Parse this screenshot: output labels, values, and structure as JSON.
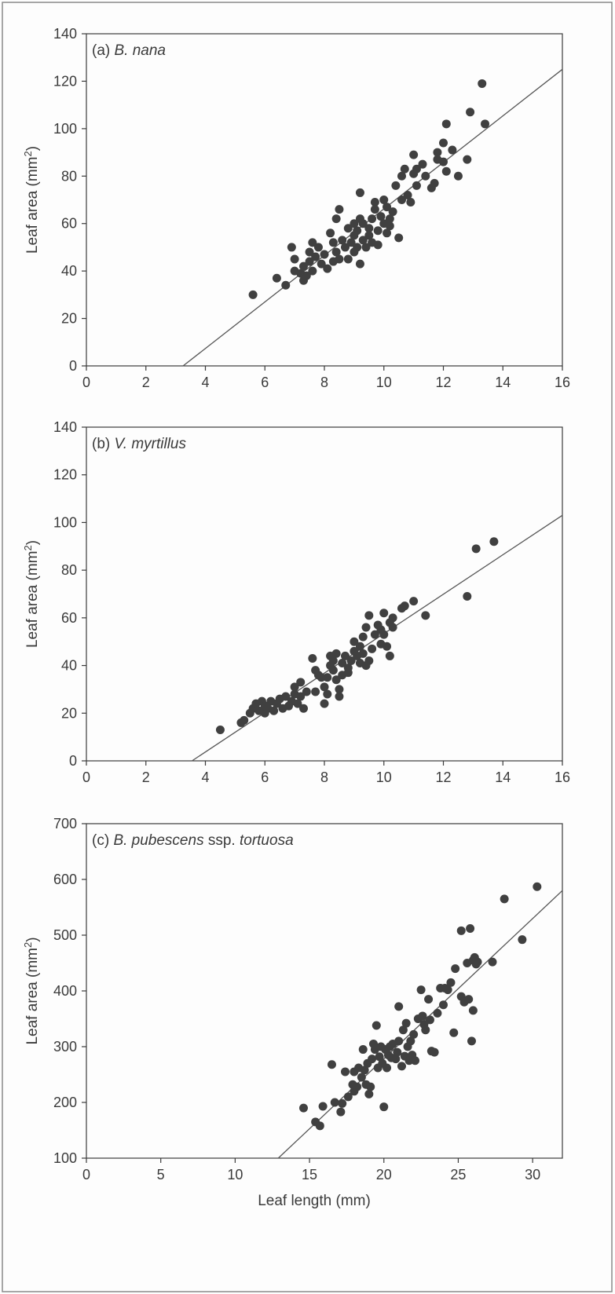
{
  "figure": {
    "colors": {
      "points": "#404040",
      "line": "#555555",
      "axes": "#3a3a3a",
      "frame": "#8a8a8a"
    }
  },
  "chart_data": [
    {
      "type": "scatter",
      "panel_label": "(a)",
      "species": "B. nana",
      "species_suffix": "",
      "xlabel": "",
      "ylabel_main": "Leaf area (mm",
      "ylabel_sup": "2",
      "ylabel_close": ")",
      "xlim": [
        0,
        16
      ],
      "ylim": [
        0,
        140
      ],
      "x_ticks": [
        0,
        2,
        4,
        6,
        8,
        10,
        12,
        14,
        16
      ],
      "y_ticks": [
        0,
        20,
        40,
        60,
        80,
        100,
        120,
        140
      ],
      "grid": false,
      "fit_line": [
        [
          3.25,
          0
        ],
        [
          16,
          125
        ]
      ],
      "points": [
        [
          5.6,
          30
        ],
        [
          6.4,
          37
        ],
        [
          6.7,
          34
        ],
        [
          6.9,
          50
        ],
        [
          7.0,
          45
        ],
        [
          7.0,
          40
        ],
        [
          7.2,
          39
        ],
        [
          7.3,
          36
        ],
        [
          7.3,
          42
        ],
        [
          7.4,
          38
        ],
        [
          7.5,
          44
        ],
        [
          7.5,
          48
        ],
        [
          7.6,
          52
        ],
        [
          7.6,
          40
        ],
        [
          7.7,
          46
        ],
        [
          7.8,
          50
        ],
        [
          7.9,
          43
        ],
        [
          8.0,
          47
        ],
        [
          8.1,
          41
        ],
        [
          8.2,
          56
        ],
        [
          8.3,
          44
        ],
        [
          8.3,
          52
        ],
        [
          8.4,
          48
        ],
        [
          8.4,
          62
        ],
        [
          8.5,
          66
        ],
        [
          8.5,
          45
        ],
        [
          8.6,
          53
        ],
        [
          8.7,
          50
        ],
        [
          8.8,
          58
        ],
        [
          8.8,
          45
        ],
        [
          8.9,
          52
        ],
        [
          9.0,
          60
        ],
        [
          9.0,
          55
        ],
        [
          9.0,
          48
        ],
        [
          9.1,
          50
        ],
        [
          9.1,
          57
        ],
        [
          9.2,
          62
        ],
        [
          9.2,
          43
        ],
        [
          9.2,
          73
        ],
        [
          9.3,
          53
        ],
        [
          9.3,
          60
        ],
        [
          9.4,
          50
        ],
        [
          9.5,
          55
        ],
        [
          9.5,
          58
        ],
        [
          9.6,
          62
        ],
        [
          9.6,
          52
        ],
        [
          9.7,
          66
        ],
        [
          9.7,
          69
        ],
        [
          9.8,
          57
        ],
        [
          9.8,
          51
        ],
        [
          9.9,
          63
        ],
        [
          10.0,
          70
        ],
        [
          10.0,
          60
        ],
        [
          10.1,
          67
        ],
        [
          10.1,
          56
        ],
        [
          10.2,
          62
        ],
        [
          10.2,
          59
        ],
        [
          10.3,
          65
        ],
        [
          10.4,
          76
        ],
        [
          10.5,
          54
        ],
        [
          10.6,
          80
        ],
        [
          10.6,
          70
        ],
        [
          10.7,
          83
        ],
        [
          10.8,
          72
        ],
        [
          10.9,
          69
        ],
        [
          11.0,
          81
        ],
        [
          11.0,
          89
        ],
        [
          11.1,
          83
        ],
        [
          11.1,
          76
        ],
        [
          11.3,
          85
        ],
        [
          11.4,
          80
        ],
        [
          11.6,
          75
        ],
        [
          11.7,
          77
        ],
        [
          11.8,
          90
        ],
        [
          11.8,
          87
        ],
        [
          12.0,
          94
        ],
        [
          12.0,
          86
        ],
        [
          12.1,
          82
        ],
        [
          12.1,
          102
        ],
        [
          12.3,
          91
        ],
        [
          12.5,
          80
        ],
        [
          12.8,
          87
        ],
        [
          12.9,
          107
        ],
        [
          13.3,
          119
        ],
        [
          13.4,
          102
        ]
      ]
    },
    {
      "type": "scatter",
      "panel_label": "(b)",
      "species": "V. myrtillus",
      "species_suffix": "",
      "xlabel": "",
      "ylabel_main": "Leaf area (mm",
      "ylabel_sup": "2",
      "ylabel_close": ")",
      "xlim": [
        0,
        16
      ],
      "ylim": [
        0,
        140
      ],
      "x_ticks": [
        0,
        2,
        4,
        6,
        8,
        10,
        12,
        14,
        16
      ],
      "y_ticks": [
        0,
        20,
        40,
        60,
        80,
        100,
        120,
        140
      ],
      "grid": false,
      "fit_line": [
        [
          3.55,
          0
        ],
        [
          16,
          103
        ]
      ],
      "points": [
        [
          4.5,
          13
        ],
        [
          5.2,
          16
        ],
        [
          5.3,
          17
        ],
        [
          5.5,
          20
        ],
        [
          5.6,
          22
        ],
        [
          5.7,
          24
        ],
        [
          5.8,
          21
        ],
        [
          5.9,
          25
        ],
        [
          6.0,
          20
        ],
        [
          6.0,
          23
        ],
        [
          6.1,
          22
        ],
        [
          6.2,
          25
        ],
        [
          6.3,
          21
        ],
        [
          6.4,
          24
        ],
        [
          6.5,
          26
        ],
        [
          6.6,
          22
        ],
        [
          6.7,
          27
        ],
        [
          6.8,
          23
        ],
        [
          6.9,
          25
        ],
        [
          7.0,
          28
        ],
        [
          7.0,
          31
        ],
        [
          7.1,
          24
        ],
        [
          7.2,
          33
        ],
        [
          7.2,
          27
        ],
        [
          7.3,
          22
        ],
        [
          7.4,
          29
        ],
        [
          7.6,
          43
        ],
        [
          7.7,
          38
        ],
        [
          7.7,
          29
        ],
        [
          7.8,
          36
        ],
        [
          7.9,
          35
        ],
        [
          8.0,
          24
        ],
        [
          8.0,
          31
        ],
        [
          8.1,
          35
        ],
        [
          8.1,
          28
        ],
        [
          8.2,
          40
        ],
        [
          8.2,
          44
        ],
        [
          8.3,
          38
        ],
        [
          8.3,
          42
        ],
        [
          8.4,
          34
        ],
        [
          8.4,
          45
        ],
        [
          8.5,
          30
        ],
        [
          8.5,
          27
        ],
        [
          8.6,
          36
        ],
        [
          8.6,
          41
        ],
        [
          8.7,
          44
        ],
        [
          8.8,
          39
        ],
        [
          8.8,
          37
        ],
        [
          8.9,
          42
        ],
        [
          9.0,
          50
        ],
        [
          9.0,
          46
        ],
        [
          9.1,
          44
        ],
        [
          9.2,
          41
        ],
        [
          9.2,
          48
        ],
        [
          9.3,
          45
        ],
        [
          9.3,
          52
        ],
        [
          9.4,
          40
        ],
        [
          9.4,
          56
        ],
        [
          9.5,
          61
        ],
        [
          9.5,
          42
        ],
        [
          9.6,
          47
        ],
        [
          9.7,
          53
        ],
        [
          9.8,
          57
        ],
        [
          9.9,
          49
        ],
        [
          9.9,
          55
        ],
        [
          10.0,
          62
        ],
        [
          10.0,
          53
        ],
        [
          10.1,
          48
        ],
        [
          10.2,
          58
        ],
        [
          10.2,
          44
        ],
        [
          10.3,
          56
        ],
        [
          10.3,
          60
        ],
        [
          10.6,
          64
        ],
        [
          10.7,
          65
        ],
        [
          11.0,
          67
        ],
        [
          11.4,
          61
        ],
        [
          12.8,
          69
        ],
        [
          13.1,
          89
        ],
        [
          13.7,
          92
        ]
      ]
    },
    {
      "type": "scatter",
      "panel_label": "(c)",
      "species": "B. pubescens",
      "species_suffix": "ssp. tortuosa",
      "xlabel": "Leaf length (mm)",
      "ylabel_main": "Leaf area (mm",
      "ylabel_sup": "2",
      "ylabel_close": ")",
      "xlim": [
        0,
        32
      ],
      "ylim": [
        100,
        700
      ],
      "x_ticks": [
        0,
        5,
        10,
        15,
        20,
        25,
        30
      ],
      "y_ticks": [
        100,
        200,
        300,
        400,
        500,
        600,
        700
      ],
      "grid": false,
      "fit_line": [
        [
          12.9,
          100
        ],
        [
          32,
          580
        ]
      ],
      "points": [
        [
          14.6,
          190
        ],
        [
          15.4,
          165
        ],
        [
          15.7,
          158
        ],
        [
          15.9,
          193
        ],
        [
          16.5,
          268
        ],
        [
          16.7,
          200
        ],
        [
          17.1,
          183
        ],
        [
          17.2,
          198
        ],
        [
          17.4,
          255
        ],
        [
          17.6,
          210
        ],
        [
          17.9,
          232
        ],
        [
          18.0,
          220
        ],
        [
          18.0,
          255
        ],
        [
          18.2,
          228
        ],
        [
          18.3,
          262
        ],
        [
          18.5,
          245
        ],
        [
          18.6,
          295
        ],
        [
          18.7,
          258
        ],
        [
          18.8,
          232
        ],
        [
          18.9,
          270
        ],
        [
          19.0,
          215
        ],
        [
          19.1,
          228
        ],
        [
          19.2,
          278
        ],
        [
          19.3,
          305
        ],
        [
          19.4,
          295
        ],
        [
          19.5,
          338
        ],
        [
          19.6,
          262
        ],
        [
          19.7,
          282
        ],
        [
          19.8,
          300
        ],
        [
          19.9,
          270
        ],
        [
          20.0,
          192
        ],
        [
          20.1,
          295
        ],
        [
          20.2,
          262
        ],
        [
          20.3,
          285
        ],
        [
          20.4,
          300
        ],
        [
          20.5,
          280
        ],
        [
          20.6,
          305
        ],
        [
          20.8,
          278
        ],
        [
          20.9,
          290
        ],
        [
          21.0,
          310
        ],
        [
          21.0,
          372
        ],
        [
          21.2,
          265
        ],
        [
          21.3,
          330
        ],
        [
          21.4,
          283
        ],
        [
          21.5,
          342
        ],
        [
          21.6,
          300
        ],
        [
          21.7,
          275
        ],
        [
          21.8,
          310
        ],
        [
          21.9,
          285
        ],
        [
          22.0,
          322
        ],
        [
          22.1,
          275
        ],
        [
          22.3,
          350
        ],
        [
          22.5,
          402
        ],
        [
          22.6,
          355
        ],
        [
          22.7,
          340
        ],
        [
          22.8,
          330
        ],
        [
          23.0,
          385
        ],
        [
          23.1,
          348
        ],
        [
          23.2,
          292
        ],
        [
          23.4,
          290
        ],
        [
          23.6,
          360
        ],
        [
          23.8,
          405
        ],
        [
          24.0,
          375
        ],
        [
          24.1,
          405
        ],
        [
          24.3,
          402
        ],
        [
          24.5,
          415
        ],
        [
          24.7,
          325
        ],
        [
          24.8,
          440
        ],
        [
          25.2,
          508
        ],
        [
          25.2,
          390
        ],
        [
          25.4,
          380
        ],
        [
          25.6,
          450
        ],
        [
          25.7,
          385
        ],
        [
          25.8,
          512
        ],
        [
          25.9,
          310
        ],
        [
          26.0,
          455
        ],
        [
          26.0,
          365
        ],
        [
          26.1,
          460
        ],
        [
          26.2,
          448
        ],
        [
          26.3,
          452
        ],
        [
          27.3,
          452
        ],
        [
          28.1,
          565
        ],
        [
          29.3,
          492
        ],
        [
          30.3,
          587
        ]
      ]
    }
  ]
}
